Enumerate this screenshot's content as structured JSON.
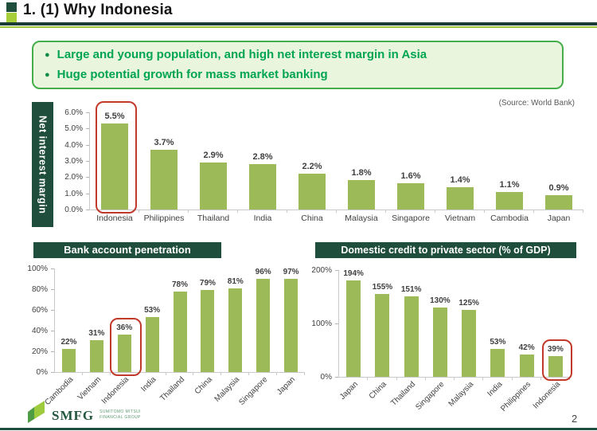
{
  "slide": {
    "title": "1. (1) Why Indonesia",
    "page_number": "2",
    "source_note": "(Source: World Bank)",
    "bullets": [
      "Large and young population, and high net interest margin in Asia",
      "Huge potential growth for mass market banking"
    ],
    "bullet_glyph": "●",
    "footer_logo": {
      "text": "SMFG",
      "subtext_line1": "Sumitomo Mitsui",
      "subtext_line2": "Financial Group"
    }
  },
  "colors": {
    "bar_green": "#9CBA58",
    "dark_green": "#1F4E3D",
    "accent_light_green": "#A6CE38",
    "bullet_text_green": "#00A551",
    "box_bg_green": "#E9F5DC",
    "box_border_green": "#44AE4B",
    "highlight_red": "#C0392B"
  },
  "chart_data": [
    {
      "id": "net-interest-margin",
      "type": "bar",
      "title": "Net interest margin",
      "categories": [
        "Indonesia",
        "Philippines",
        "Thailand",
        "India",
        "China",
        "Malaysia",
        "Singapore",
        "Vietnam",
        "Cambodia",
        "Japan"
      ],
      "values": [
        5.5,
        3.7,
        2.9,
        2.8,
        2.2,
        1.8,
        1.6,
        1.4,
        1.1,
        0.9
      ],
      "value_labels": [
        "5.5%",
        "3.7%",
        "2.9%",
        "2.8%",
        "2.2%",
        "1.8%",
        "1.6%",
        "1.4%",
        "1.1%",
        "0.9%"
      ],
      "ylim": [
        0,
        6
      ],
      "ytick_labels": [
        "6.0%",
        "5.0%",
        "4.0%",
        "3.0%",
        "2.0%",
        "1.0%",
        "0.0%"
      ],
      "ytick_values": [
        6,
        5,
        4,
        3,
        2,
        1,
        0
      ],
      "highlight": "Indonesia",
      "category_label_rotation": 0,
      "grid": false,
      "legend": false
    },
    {
      "id": "bank-account-penetration",
      "type": "bar",
      "title": "Bank account penetration",
      "categories": [
        "Cambodia",
        "Vietnam",
        "Indonesia",
        "India",
        "Thailand",
        "China",
        "Malaysia",
        "Singapore",
        "Japan"
      ],
      "values": [
        22,
        31,
        36,
        53,
        78,
        79,
        81,
        96,
        97
      ],
      "value_labels": [
        "22%",
        "31%",
        "36%",
        "53%",
        "78%",
        "79%",
        "81%",
        "96%",
        "97%"
      ],
      "ylim": [
        0,
        100
      ],
      "ytick_labels": [
        "100%",
        "80%",
        "60%",
        "40%",
        "20%",
        "0%"
      ],
      "ytick_values": [
        100,
        80,
        60,
        40,
        20,
        0
      ],
      "highlight": "Indonesia",
      "category_label_rotation": -45,
      "grid": false,
      "legend": false
    },
    {
      "id": "domestic-credit",
      "type": "bar",
      "title": "Domestic credit to private sector (% of GDP)",
      "categories": [
        "Japan",
        "China",
        "Thailand",
        "Singapore",
        "Malaysia",
        "India",
        "Philippines",
        "Indonesia"
      ],
      "values": [
        194,
        155,
        151,
        130,
        125,
        53,
        42,
        39
      ],
      "value_labels": [
        "194%",
        "155%",
        "151%",
        "130%",
        "125%",
        "53%",
        "42%",
        "39%"
      ],
      "ylim": [
        0,
        200
      ],
      "ytick_labels": [
        "200%",
        "100%",
        "0%"
      ],
      "ytick_values": [
        200,
        100,
        0
      ],
      "highlight": "Indonesia",
      "category_label_rotation": -45,
      "grid": false,
      "legend": false
    }
  ]
}
